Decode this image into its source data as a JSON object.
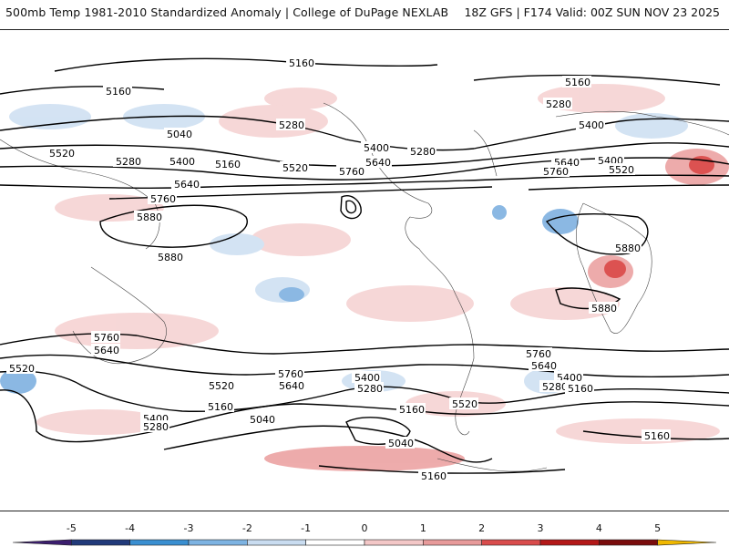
{
  "header": {
    "title_left": "500mb Temp 1981-2010 Standardized Anomaly | College of DuPage NEXLAB",
    "title_right": "18Z GFS | F174 Valid: 00Z SUN NOV 23 2025"
  },
  "colorbar": {
    "ticks": [
      "-5",
      "-4",
      "-3",
      "-2",
      "-1",
      "0",
      "1",
      "2",
      "3",
      "4",
      "5"
    ],
    "colors": [
      "#3b1d6e",
      "#213a7a",
      "#3a8fd1",
      "#7db3e2",
      "#c9dcf0",
      "#ffffff",
      "#f3c7c7",
      "#e79a9a",
      "#d94c4c",
      "#b31818",
      "#7a0c0c",
      "#f0b800"
    ]
  },
  "map": {
    "contour_labels": [
      "5160",
      "5160",
      "5160",
      "5280",
      "5280",
      "5400",
      "5280",
      "5040",
      "5520",
      "5280",
      "5400",
      "5160",
      "5520",
      "5760",
      "5400",
      "5280",
      "5640",
      "5400",
      "5640",
      "5520",
      "5760",
      "5640",
      "5760",
      "5880",
      "5880",
      "5880",
      "5880",
      "5760",
      "5640",
      "5520",
      "5760",
      "5640",
      "5520",
      "5400",
      "5280",
      "5160",
      "5040",
      "5400",
      "5280",
      "5160",
      "5520",
      "5040",
      "5160",
      "5760",
      "5640",
      "5400",
      "5280",
      "5160",
      "5160"
    ],
    "anomaly_colors": {
      "warm_light": "#f6d3d3",
      "warm": "#eca3a3",
      "warm_strong": "#d9403f",
      "cold_light": "#cfe0f2",
      "cold": "#7fb1e0",
      "cold_strong": "#2f7fd0"
    }
  }
}
